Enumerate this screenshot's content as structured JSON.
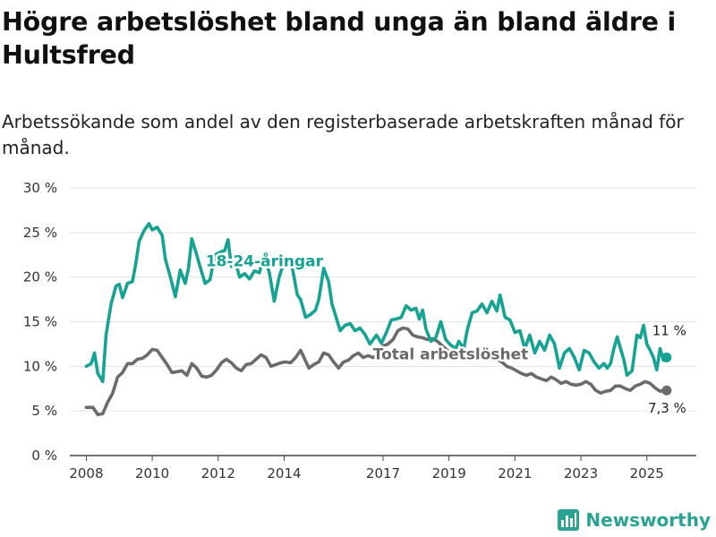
{
  "header": {
    "title": "Högre arbetslöshet bland unga än bland äldre i Hultsfred",
    "subtitle": "Arbetssökande som andel av den registerbaserade arbetskraften månad för månad."
  },
  "brand": {
    "name": "Newsworthy",
    "icon": "newsworthy-logo-icon",
    "color": "#2aa392"
  },
  "chart_data": {
    "type": "line",
    "x_unit": "year (decimal)",
    "xlim": [
      2007.5,
      2026.5
    ],
    "ylim": [
      0,
      30
    ],
    "grid": true,
    "y_ticks": [
      {
        "value": 0,
        "label": "0 %"
      },
      {
        "value": 5,
        "label": "5 %"
      },
      {
        "value": 10,
        "label": "10 %"
      },
      {
        "value": 15,
        "label": "15 %"
      },
      {
        "value": 20,
        "label": "20 %"
      },
      {
        "value": 25,
        "label": "25 %"
      },
      {
        "value": 30,
        "label": "30 %"
      }
    ],
    "x_ticks": [
      {
        "value": 2008,
        "label": "2008"
      },
      {
        "value": 2010,
        "label": "2010"
      },
      {
        "value": 2012,
        "label": "2012"
      },
      {
        "value": 2014,
        "label": "2014"
      },
      {
        "value": 2017,
        "label": "2017"
      },
      {
        "value": 2019,
        "label": "2019"
      },
      {
        "value": 2021,
        "label": "2021"
      },
      {
        "value": 2023,
        "label": "2023"
      },
      {
        "value": 2025,
        "label": "2025"
      }
    ],
    "series": [
      {
        "name": "18-24-åringar",
        "color": "#16a394",
        "label_at": [
          2013.4,
          21.2
        ],
        "end_label": "11 %",
        "points": [
          [
            2008.0,
            10.0
          ],
          [
            2008.15,
            10.3
          ],
          [
            2008.25,
            11.5
          ],
          [
            2008.35,
            9.2
          ],
          [
            2008.5,
            8.3
          ],
          [
            2008.6,
            13.5
          ],
          [
            2008.75,
            17.0
          ],
          [
            2008.9,
            19.0
          ],
          [
            2009.0,
            19.2
          ],
          [
            2009.1,
            17.7
          ],
          [
            2009.25,
            19.3
          ],
          [
            2009.4,
            19.5
          ],
          [
            2009.5,
            21.5
          ],
          [
            2009.6,
            24.0
          ],
          [
            2009.75,
            25.2
          ],
          [
            2009.9,
            26.0
          ],
          [
            2010.0,
            25.3
          ],
          [
            2010.15,
            25.6
          ],
          [
            2010.3,
            24.7
          ],
          [
            2010.4,
            22.0
          ],
          [
            2010.55,
            20.0
          ],
          [
            2010.7,
            17.8
          ],
          [
            2010.85,
            20.8
          ],
          [
            2011.0,
            19.3
          ],
          [
            2011.1,
            21.0
          ],
          [
            2011.2,
            24.3
          ],
          [
            2011.35,
            22.5
          ],
          [
            2011.45,
            21.2
          ],
          [
            2011.6,
            19.3
          ],
          [
            2011.75,
            19.7
          ],
          [
            2011.9,
            22.5
          ],
          [
            2012.05,
            22.8
          ],
          [
            2012.2,
            23.0
          ],
          [
            2012.3,
            24.2
          ],
          [
            2012.4,
            21.2
          ],
          [
            2012.5,
            22.0
          ],
          [
            2012.65,
            20.0
          ],
          [
            2012.8,
            20.4
          ],
          [
            2012.95,
            19.8
          ],
          [
            2013.1,
            20.7
          ],
          [
            2013.25,
            20.5
          ],
          [
            2013.4,
            22.5
          ],
          [
            2013.55,
            20.5
          ],
          [
            2013.7,
            17.3
          ],
          [
            2013.85,
            20.0
          ],
          [
            2014.0,
            21.8
          ],
          [
            2014.1,
            22.2
          ],
          [
            2014.25,
            21.0
          ],
          [
            2014.4,
            18.0
          ],
          [
            2014.5,
            17.5
          ],
          [
            2014.65,
            15.5
          ],
          [
            2014.8,
            15.8
          ],
          [
            2014.95,
            16.3
          ],
          [
            2015.05,
            17.5
          ],
          [
            2015.2,
            21.0
          ],
          [
            2015.35,
            19.5
          ],
          [
            2015.45,
            17.0
          ],
          [
            2015.55,
            15.8
          ],
          [
            2015.7,
            14.0
          ],
          [
            2015.85,
            14.6
          ],
          [
            2016.0,
            14.8
          ],
          [
            2016.15,
            14.0
          ],
          [
            2016.3,
            14.3
          ],
          [
            2016.45,
            13.6
          ],
          [
            2016.6,
            12.5
          ],
          [
            2016.8,
            13.5
          ],
          [
            2016.95,
            12.6
          ],
          [
            2017.1,
            13.8
          ],
          [
            2017.25,
            15.2
          ],
          [
            2017.4,
            15.3
          ],
          [
            2017.55,
            15.5
          ],
          [
            2017.7,
            16.8
          ],
          [
            2017.85,
            16.3
          ],
          [
            2018.0,
            16.5
          ],
          [
            2018.1,
            15.3
          ],
          [
            2018.2,
            16.3
          ],
          [
            2018.3,
            14.2
          ],
          [
            2018.45,
            12.8
          ],
          [
            2018.6,
            13.2
          ],
          [
            2018.75,
            15.0
          ],
          [
            2018.9,
            13.0
          ],
          [
            2019.05,
            12.4
          ],
          [
            2019.2,
            12.0
          ],
          [
            2019.3,
            12.8
          ],
          [
            2019.45,
            12.0
          ],
          [
            2019.55,
            14.0
          ],
          [
            2019.7,
            16.0
          ],
          [
            2019.85,
            16.2
          ],
          [
            2020.0,
            17.0
          ],
          [
            2020.15,
            16.0
          ],
          [
            2020.3,
            17.3
          ],
          [
            2020.45,
            16.2
          ],
          [
            2020.55,
            18.0
          ],
          [
            2020.7,
            15.5
          ],
          [
            2020.85,
            15.2
          ],
          [
            2021.0,
            13.8
          ],
          [
            2021.15,
            14.0
          ],
          [
            2021.3,
            12.0
          ],
          [
            2021.45,
            13.5
          ],
          [
            2021.6,
            11.5
          ],
          [
            2021.75,
            12.8
          ],
          [
            2021.9,
            11.8
          ],
          [
            2022.05,
            13.5
          ],
          [
            2022.2,
            12.5
          ],
          [
            2022.35,
            9.8
          ],
          [
            2022.5,
            11.5
          ],
          [
            2022.65,
            12.0
          ],
          [
            2022.8,
            11.0
          ],
          [
            2022.95,
            9.6
          ],
          [
            2023.1,
            11.8
          ],
          [
            2023.25,
            11.5
          ],
          [
            2023.4,
            10.5
          ],
          [
            2023.55,
            9.8
          ],
          [
            2023.7,
            10.3
          ],
          [
            2023.8,
            9.8
          ],
          [
            2023.9,
            10.3
          ],
          [
            2024.0,
            12.0
          ],
          [
            2024.1,
            13.3
          ],
          [
            2024.2,
            12.0
          ],
          [
            2024.3,
            10.8
          ],
          [
            2024.4,
            9.0
          ],
          [
            2024.55,
            9.5
          ],
          [
            2024.7,
            13.5
          ],
          [
            2024.8,
            13.2
          ],
          [
            2024.9,
            14.6
          ],
          [
            2025.0,
            12.5
          ],
          [
            2025.1,
            11.8
          ],
          [
            2025.2,
            11.0
          ],
          [
            2025.3,
            9.6
          ],
          [
            2025.4,
            12.0
          ],
          [
            2025.5,
            10.7
          ],
          [
            2025.6,
            11.0
          ]
        ]
      },
      {
        "name": "Total arbetslöshet",
        "color": "#6b6b6b",
        "label_at": [
          2019.05,
          10.8
        ],
        "end_label": "7,3 %",
        "points": [
          [
            2008.0,
            5.4
          ],
          [
            2008.2,
            5.4
          ],
          [
            2008.35,
            4.6
          ],
          [
            2008.5,
            4.7
          ],
          [
            2008.65,
            6.0
          ],
          [
            2008.8,
            7.0
          ],
          [
            2008.95,
            8.8
          ],
          [
            2009.1,
            9.3
          ],
          [
            2009.25,
            10.3
          ],
          [
            2009.4,
            10.3
          ],
          [
            2009.55,
            10.8
          ],
          [
            2009.7,
            10.9
          ],
          [
            2009.85,
            11.3
          ],
          [
            2010.0,
            11.9
          ],
          [
            2010.15,
            11.8
          ],
          [
            2010.3,
            11.0
          ],
          [
            2010.45,
            10.2
          ],
          [
            2010.6,
            9.3
          ],
          [
            2010.75,
            9.4
          ],
          [
            2010.9,
            9.5
          ],
          [
            2011.05,
            9.0
          ],
          [
            2011.2,
            10.3
          ],
          [
            2011.35,
            9.8
          ],
          [
            2011.5,
            8.9
          ],
          [
            2011.65,
            8.8
          ],
          [
            2011.8,
            9.0
          ],
          [
            2011.95,
            9.6
          ],
          [
            2012.1,
            10.4
          ],
          [
            2012.25,
            10.8
          ],
          [
            2012.4,
            10.4
          ],
          [
            2012.55,
            9.8
          ],
          [
            2012.7,
            9.5
          ],
          [
            2012.85,
            10.2
          ],
          [
            2013.0,
            10.3
          ],
          [
            2013.15,
            10.8
          ],
          [
            2013.3,
            11.3
          ],
          [
            2013.45,
            11.0
          ],
          [
            2013.6,
            10.0
          ],
          [
            2013.75,
            10.2
          ],
          [
            2013.9,
            10.4
          ],
          [
            2014.05,
            10.5
          ],
          [
            2014.2,
            10.4
          ],
          [
            2014.35,
            11.0
          ],
          [
            2014.5,
            11.8
          ],
          [
            2014.6,
            11.0
          ],
          [
            2014.75,
            9.8
          ],
          [
            2014.9,
            10.2
          ],
          [
            2015.05,
            10.5
          ],
          [
            2015.2,
            11.5
          ],
          [
            2015.35,
            11.3
          ],
          [
            2015.5,
            10.5
          ],
          [
            2015.65,
            9.8
          ],
          [
            2015.8,
            10.5
          ],
          [
            2015.95,
            10.7
          ],
          [
            2016.1,
            11.2
          ],
          [
            2016.25,
            11.5
          ],
          [
            2016.4,
            11.0
          ],
          [
            2016.55,
            11.2
          ],
          [
            2016.7,
            11.0
          ],
          [
            2016.85,
            11.3
          ],
          [
            2017.0,
            12.3
          ],
          [
            2017.15,
            12.5
          ],
          [
            2017.3,
            13.0
          ],
          [
            2017.45,
            14.0
          ],
          [
            2017.6,
            14.3
          ],
          [
            2017.75,
            14.2
          ],
          [
            2017.9,
            13.5
          ],
          [
            2018.05,
            13.3
          ],
          [
            2018.2,
            13.2
          ],
          [
            2018.35,
            13.0
          ],
          [
            2018.5,
            13.1
          ],
          [
            2018.65,
            12.8
          ],
          [
            2018.8,
            12.3
          ],
          [
            2018.95,
            11.8
          ],
          [
            2019.1,
            11.2
          ],
          [
            2019.25,
            11.0
          ],
          [
            2019.4,
            11.5
          ],
          [
            2019.55,
            11.2
          ],
          [
            2019.7,
            11.6
          ],
          [
            2019.85,
            11.5
          ],
          [
            2020.0,
            11.8
          ],
          [
            2020.15,
            11.3
          ],
          [
            2020.3,
            11.5
          ],
          [
            2020.45,
            10.8
          ],
          [
            2020.6,
            10.5
          ],
          [
            2020.75,
            10.0
          ],
          [
            2020.9,
            9.8
          ],
          [
            2021.05,
            9.5
          ],
          [
            2021.2,
            9.2
          ],
          [
            2021.35,
            9.0
          ],
          [
            2021.5,
            9.2
          ],
          [
            2021.65,
            8.8
          ],
          [
            2021.8,
            8.6
          ],
          [
            2021.95,
            8.4
          ],
          [
            2022.1,
            8.8
          ],
          [
            2022.25,
            8.5
          ],
          [
            2022.4,
            8.1
          ],
          [
            2022.55,
            8.3
          ],
          [
            2022.7,
            8.0
          ],
          [
            2022.85,
            7.9
          ],
          [
            2023.0,
            8.0
          ],
          [
            2023.15,
            8.3
          ],
          [
            2023.3,
            8.0
          ],
          [
            2023.45,
            7.3
          ],
          [
            2023.6,
            7.0
          ],
          [
            2023.75,
            7.2
          ],
          [
            2023.9,
            7.3
          ],
          [
            2024.05,
            7.8
          ],
          [
            2024.2,
            7.8
          ],
          [
            2024.35,
            7.5
          ],
          [
            2024.5,
            7.3
          ],
          [
            2024.65,
            7.8
          ],
          [
            2024.8,
            8.0
          ],
          [
            2024.95,
            8.3
          ],
          [
            2025.1,
            8.1
          ],
          [
            2025.25,
            7.6
          ],
          [
            2025.4,
            7.2
          ],
          [
            2025.5,
            7.3
          ],
          [
            2025.6,
            7.3
          ]
        ]
      }
    ]
  }
}
